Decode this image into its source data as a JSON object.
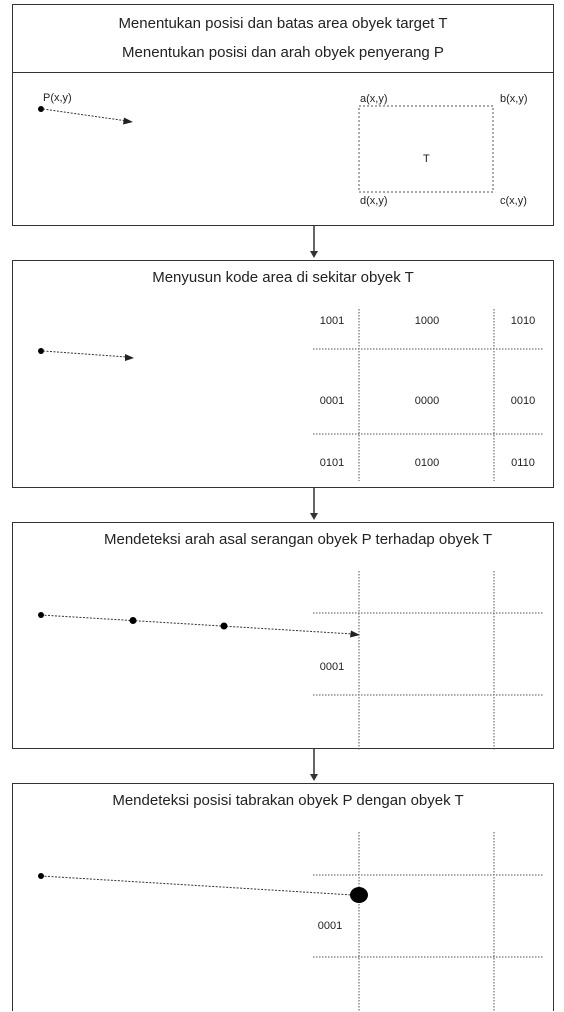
{
  "step1": {
    "title_line1": "Menentukan posisi dan batas area obyek target T",
    "title_line2": "Menentukan posisi dan arah obyek penyerang P",
    "label_p": "P(x,y)",
    "label_a": "a(x,y)",
    "label_b": "b(x,y)",
    "label_c": "c(x,y)",
    "label_d": "d(x,y)",
    "label_t": "T"
  },
  "step2": {
    "title": "Menyusun kode area di sekitar obyek T",
    "codes": {
      "top_left": "1001",
      "top_center": "1000",
      "top_right": "1010",
      "mid_left": "0001",
      "mid_center": "0000",
      "mid_right": "0010",
      "bot_left": "0101",
      "bot_center": "0100",
      "bot_right": "0110"
    }
  },
  "step3": {
    "title": "Mendeteksi arah asal serangan obyek P terhadap obyek T",
    "code": "0001"
  },
  "step4": {
    "title": "Mendeteksi posisi tabrakan obyek P dengan obyek T",
    "code": "0001"
  },
  "colors": {
    "line": "#333333",
    "dot": "#000000"
  }
}
